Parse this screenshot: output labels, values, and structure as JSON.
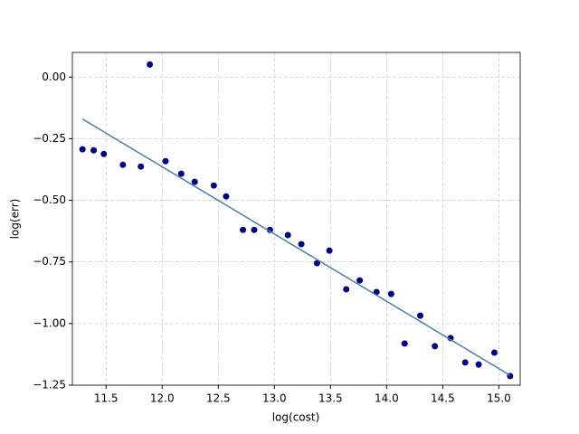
{
  "chart_data": {
    "type": "scatter",
    "xlabel": "log(cost)",
    "ylabel": "log(err)",
    "xlim": [
      11.2,
      15.19
    ],
    "ylim": [
      -1.25,
      0.1
    ],
    "xticks": [
      11.5,
      {
        "value": 12,
        "label": "12.0"
      },
      12.5,
      {
        "value": 13,
        "label": "13.0"
      },
      13.5,
      {
        "value": 14,
        "label": "14.0"
      },
      14.5,
      {
        "value": 15,
        "label": "15.0"
      }
    ],
    "yticks": [
      {
        "value": -1.25,
        "label": "−1.25"
      },
      {
        "value": -1,
        "label": "−1.00"
      },
      {
        "value": -0.75,
        "label": "−0.75"
      },
      {
        "value": -0.5,
        "label": "−0.50"
      },
      {
        "value": -0.25,
        "label": "−0.25"
      },
      {
        "value": 0,
        "label": "0.00"
      }
    ],
    "grid": true,
    "series": [
      {
        "type": "scatter",
        "color": "#000080",
        "x": [
          11.29,
          11.39,
          11.48,
          11.65,
          11.81,
          11.89,
          12.03,
          12.17,
          12.29,
          12.46,
          12.57,
          12.72,
          12.82,
          12.96,
          13.12,
          13.24,
          13.38,
          13.49,
          13.64,
          13.76,
          13.91,
          14.04,
          14.16,
          14.3,
          14.43,
          14.57,
          14.7,
          14.82,
          14.96,
          15.1
        ],
        "values": [
          -0.293,
          -0.297,
          -0.312,
          -0.356,
          -0.363,
          0.051,
          -0.341,
          -0.392,
          -0.425,
          -0.44,
          -0.484,
          -0.62,
          -0.62,
          -0.62,
          -0.641,
          -0.678,
          -0.755,
          -0.704,
          -0.861,
          -0.825,
          -0.872,
          -0.88,
          -1.081,
          -0.968,
          -1.092,
          -1.059,
          -1.158,
          -1.166,
          -1.118,
          -1.213
        ]
      },
      {
        "type": "line",
        "color": "#4a7fa8",
        "x": [
          11.29,
          15.1
        ],
        "values": [
          -0.17,
          -1.21
        ]
      }
    ]
  }
}
